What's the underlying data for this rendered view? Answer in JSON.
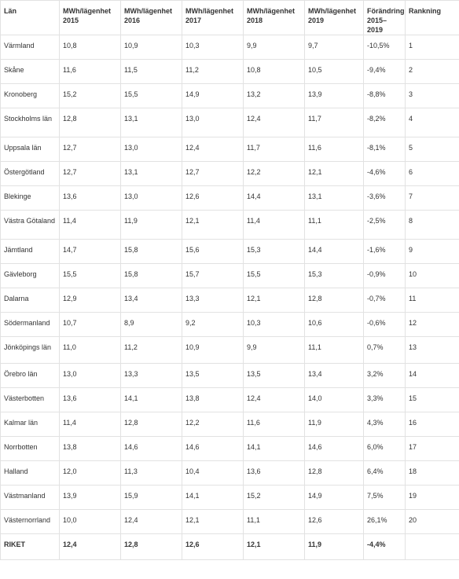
{
  "table": {
    "headers": [
      "Län",
      "MWh/lägenhet 2015",
      "MWh/lägenhet 2016",
      "MWh/lägenhet 2017",
      "MWh/lägenhet 2018",
      "MWh/lägenhet 2019",
      "Förändring 2015–2019",
      "Rankning"
    ],
    "rows": [
      [
        "Värmland",
        "10,8",
        "10,9",
        "10,3",
        "9,9",
        "9,7",
        "-10,5%",
        "1"
      ],
      [
        "Skåne",
        "11,6",
        "11,5",
        "11,2",
        "10,8",
        "10,5",
        "-9,4%",
        "2"
      ],
      [
        "Kronoberg",
        "15,2",
        "15,5",
        "14,9",
        "13,2",
        "13,9",
        "-8,8%",
        "3"
      ],
      [
        "Stockholms län",
        "12,8",
        "13,1",
        "13,0",
        "12,4",
        "11,7",
        "-8,2%",
        "4"
      ],
      [
        "Uppsala län",
        "12,7",
        "13,0",
        "12,4",
        "11,7",
        "11,6",
        "-8,1%",
        "5"
      ],
      [
        "Östergötland",
        "12,7",
        "13,1",
        "12,7",
        "12,2",
        "12,1",
        "-4,6%",
        "6"
      ],
      [
        "Blekinge",
        "13,6",
        "13,0",
        "12,6",
        "14,4",
        "13,1",
        "-3,6%",
        "7"
      ],
      [
        "Västra Götaland",
        "11,4",
        "11,9",
        "12,1",
        "11,4",
        "11,1",
        "-2,5%",
        "8"
      ],
      [
        "Jämtland",
        "14,7",
        "15,8",
        "15,6",
        "15,3",
        "14,4",
        "-1,6%",
        "9"
      ],
      [
        "Gävleborg",
        "15,5",
        "15,8",
        "15,7",
        "15,5",
        "15,3",
        "-0,9%",
        "10"
      ],
      [
        "Dalarna",
        "12,9",
        "13,4",
        "13,3",
        "12,1",
        "12,8",
        "-0,7%",
        "11"
      ],
      [
        "Södermanland",
        "10,7",
        "8,9",
        "9,2",
        "10,3",
        "10,6",
        "-0,6%",
        "12"
      ],
      [
        "Jönköpings län",
        "11,0",
        "11,2",
        "10,9",
        "9,9",
        "11,1",
        "0,7%",
        "13"
      ],
      [
        "Örebro län",
        "13,0",
        "13,3",
        "13,5",
        "13,5",
        "13,4",
        "3,2%",
        "14"
      ],
      [
        "Västerbotten",
        "13,6",
        "14,1",
        "13,8",
        "12,4",
        "14,0",
        "3,3%",
        "15"
      ],
      [
        "Kalmar län",
        "11,4",
        "12,8",
        "12,2",
        "11,6",
        "11,9",
        "4,3%",
        "16"
      ],
      [
        "Norrbotten",
        "13,8",
        "14,6",
        "14,6",
        "14,1",
        "14,6",
        "6,0%",
        "17"
      ],
      [
        "Halland",
        "12,0",
        "11,3",
        "10,4",
        "13,6",
        "12,8",
        "6,4%",
        "18"
      ],
      [
        "Västmanland",
        "13,9",
        "15,9",
        "14,1",
        "15,2",
        "14,9",
        "7,5%",
        "19"
      ],
      [
        "Västernorrland",
        "10,0",
        "12,4",
        "12,1",
        "11,1",
        "12,6",
        "26,1%",
        "20"
      ],
      [
        "RIKET",
        "12,4",
        "12,8",
        "12,6",
        "12,1",
        "11,9",
        "-4,4%",
        ""
      ]
    ]
  }
}
